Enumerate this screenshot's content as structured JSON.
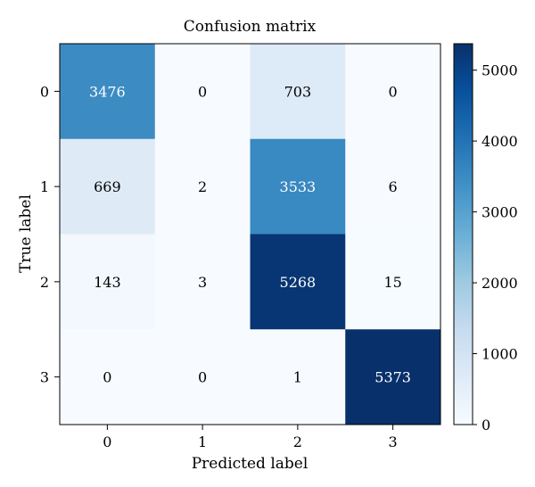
{
  "chart_data": {
    "type": "heatmap",
    "title": "Confusion matrix",
    "xlabel": "Predicted label",
    "ylabel": "True label",
    "x_categories": [
      "0",
      "1",
      "2",
      "3"
    ],
    "y_categories": [
      "0",
      "1",
      "2",
      "3"
    ],
    "values": [
      [
        3476,
        0,
        703,
        0
      ],
      [
        669,
        2,
        3533,
        6
      ],
      [
        143,
        3,
        5268,
        15
      ],
      [
        0,
        0,
        1,
        5373
      ]
    ],
    "colorbar": {
      "min": 0,
      "max": 5373,
      "ticks": [
        0,
        1000,
        2000,
        3000,
        4000,
        5000
      ],
      "colormap": "Blues"
    },
    "colors": {
      "low": "#f7fbff",
      "high": "#08306b"
    }
  }
}
